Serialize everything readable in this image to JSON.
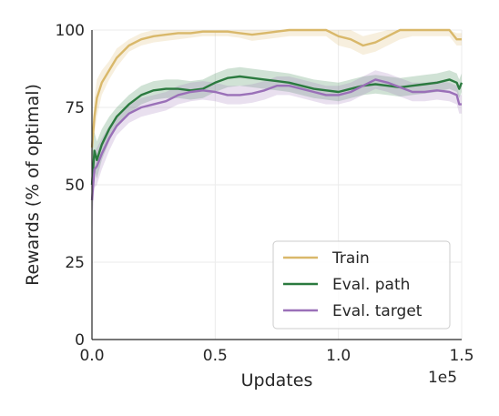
{
  "chart_data": {
    "type": "line",
    "xlabel": "Updates",
    "ylabel": "Rewards (% of optimal)",
    "x_offset_label": "1e5",
    "xlim": [
      0,
      150000
    ],
    "ylim": [
      0,
      100
    ],
    "xticks": [
      0,
      50000,
      100000,
      150000
    ],
    "xtick_labels": [
      "0.0",
      "0.5",
      "1.0",
      "1.5"
    ],
    "yticks": [
      0,
      25,
      50,
      75,
      100
    ],
    "ytick_labels": [
      "0",
      "25",
      "50",
      "75",
      "100"
    ],
    "grid": true,
    "legend_position": "lower-right",
    "series": [
      {
        "name": "Train",
        "color": "#d9b86a",
        "x": [
          0,
          1000,
          2000,
          4000,
          7000,
          10000,
          15000,
          20000,
          25000,
          30000,
          35000,
          40000,
          45000,
          50000,
          55000,
          60000,
          65000,
          70000,
          75000,
          80000,
          85000,
          90000,
          95000,
          100000,
          105000,
          110000,
          115000,
          120000,
          125000,
          130000,
          135000,
          140000,
          145000,
          148000,
          150000
        ],
        "y": [
          62,
          72,
          78,
          83,
          87,
          91,
          95,
          97,
          98,
          98.5,
          99,
          99,
          99.5,
          99.5,
          99.5,
          99,
          98.5,
          99,
          99.5,
          100,
          100,
          100,
          100,
          98,
          97,
          95,
          96,
          98,
          100,
          100,
          100,
          100,
          100,
          97,
          97
        ],
        "band": [
          5,
          6,
          6,
          4,
          3,
          3,
          2,
          2,
          2,
          2,
          2,
          1.5,
          1.5,
          1.5,
          1.5,
          1.5,
          2,
          2,
          2,
          2,
          2,
          2,
          2,
          3,
          3,
          3,
          3,
          3,
          3,
          2,
          2,
          2,
          2,
          2,
          2
        ]
      },
      {
        "name": "Eval. path",
        "color": "#2b7a3f",
        "x": [
          0,
          1000,
          2000,
          4000,
          7000,
          10000,
          15000,
          20000,
          25000,
          30000,
          35000,
          40000,
          45000,
          50000,
          55000,
          60000,
          65000,
          70000,
          75000,
          80000,
          85000,
          90000,
          95000,
          100000,
          105000,
          110000,
          115000,
          120000,
          125000,
          130000,
          135000,
          140000,
          145000,
          148000,
          149000,
          150000
        ],
        "y": [
          50,
          61,
          58,
          63,
          68,
          72,
          76,
          79,
          80.5,
          81,
          81,
          80.5,
          81,
          83,
          84.5,
          85,
          84.5,
          84,
          83.5,
          83,
          82,
          81,
          80.5,
          80,
          81,
          82,
          82.5,
          82,
          81.5,
          82,
          82.5,
          83,
          84,
          83,
          81,
          83
        ],
        "band": [
          12,
          6,
          6,
          5,
          4,
          3,
          3,
          3,
          3,
          3,
          3,
          3,
          3,
          3,
          3,
          3,
          3,
          3,
          3,
          3,
          3,
          3,
          3,
          3,
          3,
          3,
          3,
          3,
          3,
          3,
          3,
          3,
          3,
          3,
          3,
          3
        ]
      },
      {
        "name": "Eval. target",
        "color": "#9a70b8",
        "x": [
          0,
          1000,
          2000,
          4000,
          7000,
          10000,
          15000,
          20000,
          25000,
          30000,
          35000,
          40000,
          45000,
          50000,
          55000,
          60000,
          65000,
          70000,
          75000,
          80000,
          85000,
          90000,
          95000,
          100000,
          105000,
          110000,
          115000,
          120000,
          125000,
          130000,
          135000,
          140000,
          145000,
          148000,
          149000,
          150000
        ],
        "y": [
          45,
          55,
          56,
          60,
          65,
          69,
          73,
          75,
          76,
          77,
          79,
          80,
          80.5,
          80,
          79,
          79,
          79.5,
          80.5,
          82,
          82,
          81,
          80,
          79,
          79,
          80,
          82,
          84,
          83,
          81.5,
          80,
          80,
          80.5,
          80,
          79,
          76,
          76
        ],
        "band": [
          12,
          6,
          6,
          5,
          4,
          3,
          3,
          3,
          3,
          3,
          3,
          3,
          3,
          3,
          3,
          3,
          3,
          3,
          3,
          3,
          3,
          3,
          3,
          3,
          3,
          3,
          3,
          3,
          3,
          3,
          3,
          3,
          3,
          3,
          3,
          3
        ]
      }
    ]
  }
}
